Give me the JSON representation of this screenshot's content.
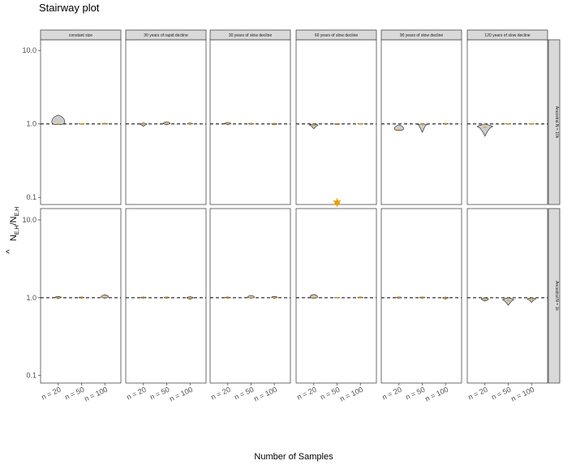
{
  "chart_data": {
    "type": "violin",
    "title": "Stairway plot",
    "xlabel": "Number of Samples",
    "ylabel": "N̂E,H/NE,H",
    "y_scale": "log10",
    "ylim": [
      0.08,
      14
    ],
    "y_ticks": [
      "0.1",
      "1.0",
      "10.0"
    ],
    "reference_line": 1.0,
    "categories": [
      "n = 20",
      "n = 50",
      "n = 100"
    ],
    "columns": [
      "constant size",
      "30 years of rapid decline",
      "30 years of slow decline",
      "60 years of slow decline",
      "90 years of slow decline",
      "120 years of slow decline"
    ],
    "rows": [
      "Ancestral N = 10k",
      "Ancestral N = 1k"
    ],
    "grid": true,
    "panels": [
      {
        "row": 0,
        "col": 0,
        "violins": [
          {
            "min": 0.98,
            "max": 1.32,
            "median": 1.0
          },
          {
            "min": 0.99,
            "max": 1.01,
            "median": 1.0
          },
          {
            "min": 0.99,
            "max": 1.02,
            "median": 1.0
          }
        ]
      },
      {
        "row": 0,
        "col": 1,
        "violins": [
          {
            "min": 0.93,
            "max": 1.03,
            "median": 0.98
          },
          {
            "min": 0.97,
            "max": 1.07,
            "median": 1.0
          },
          {
            "min": 0.98,
            "max": 1.03,
            "median": 1.0
          }
        ]
      },
      {
        "row": 0,
        "col": 2,
        "violins": [
          {
            "min": 0.97,
            "max": 1.05,
            "median": 1.0
          },
          {
            "min": 0.98,
            "max": 1.02,
            "median": 1.0
          },
          {
            "min": 0.97,
            "max": 1.02,
            "median": 0.99
          }
        ]
      },
      {
        "row": 0,
        "col": 3,
        "violins": [
          {
            "min": 0.86,
            "max": 1.0,
            "median": 0.95
          },
          {
            "min": 0.98,
            "max": 1.01,
            "median": 0.99
          },
          {
            "min": 0.99,
            "max": 1.01,
            "median": 1.0
          }
        ]
      },
      {
        "row": 0,
        "col": 4,
        "violins": [
          {
            "min": 0.81,
            "max": 0.97,
            "median": 0.83
          },
          {
            "min": 0.77,
            "max": 1.01,
            "median": 0.99
          },
          {
            "min": 0.98,
            "max": 1.02,
            "median": 1.0
          }
        ]
      },
      {
        "row": 0,
        "col": 5,
        "violins": [
          {
            "min": 0.68,
            "max": 1.0,
            "median": 0.9
          },
          {
            "min": 0.99,
            "max": 1.01,
            "median": 1.0
          },
          {
            "min": 0.99,
            "max": 1.01,
            "median": 1.0
          }
        ]
      },
      {
        "row": 1,
        "col": 0,
        "violins": [
          {
            "min": 0.97,
            "max": 1.04,
            "median": 1.0
          },
          {
            "min": 0.98,
            "max": 1.02,
            "median": 1.0
          },
          {
            "min": 0.98,
            "max": 1.09,
            "median": 1.01
          }
        ]
      },
      {
        "row": 1,
        "col": 1,
        "violins": [
          {
            "min": 0.98,
            "max": 1.02,
            "median": 1.0
          },
          {
            "min": 0.98,
            "max": 1.02,
            "median": 1.0
          },
          {
            "min": 0.95,
            "max": 1.03,
            "median": 0.99
          }
        ]
      },
      {
        "row": 1,
        "col": 2,
        "violins": [
          {
            "min": 0.98,
            "max": 1.02,
            "median": 1.0
          },
          {
            "min": 0.98,
            "max": 1.07,
            "median": 1.0
          },
          {
            "min": 0.98,
            "max": 1.04,
            "median": 1.0
          }
        ]
      },
      {
        "row": 1,
        "col": 3,
        "violins": [
          {
            "min": 0.98,
            "max": 1.1,
            "median": 1.0
          },
          {
            "min": 0.99,
            "max": 1.01,
            "median": 1.0
          },
          {
            "min": 0.99,
            "max": 1.02,
            "median": 1.0
          }
        ]
      },
      {
        "row": 1,
        "col": 4,
        "violins": [
          {
            "min": 0.98,
            "max": 1.02,
            "median": 1.0
          },
          {
            "min": 0.98,
            "max": 1.02,
            "median": 1.0
          },
          {
            "min": 0.96,
            "max": 1.02,
            "median": 0.99
          }
        ]
      },
      {
        "row": 1,
        "col": 5,
        "violins": [
          {
            "min": 0.9,
            "max": 1.0,
            "median": 0.94
          },
          {
            "min": 0.8,
            "max": 1.0,
            "median": 0.92
          },
          {
            "min": 0.87,
            "max": 1.0,
            "median": 0.95
          }
        ]
      }
    ],
    "outliers": [
      {
        "row": 0,
        "col": 3,
        "category": "n = 50",
        "y": 0.085
      }
    ],
    "colors": {
      "violin_fill": "#cccccc",
      "violin_stroke": "#333333",
      "median": "#e69f00",
      "outlier": "#e69f00",
      "strip": "#d9d9d9",
      "grid": "#ebebeb"
    }
  }
}
